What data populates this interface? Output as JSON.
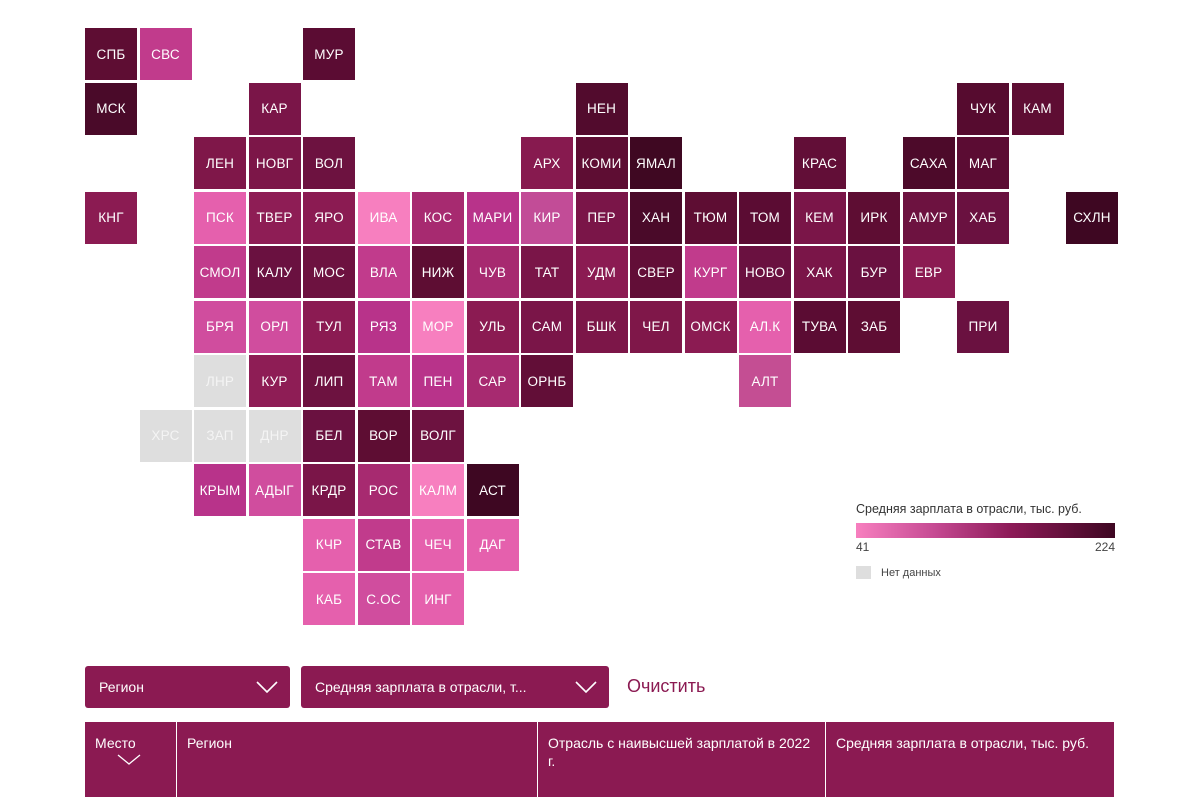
{
  "colors": {
    "accent": "#8b1a52",
    "nodata": "#dedede",
    "scale_min": "#f77fbf",
    "scale_max": "#3e0722"
  },
  "legend": {
    "title": "Средняя зарплата в отрасли, тыс. руб.",
    "min": "41",
    "max": "224",
    "nodata_label": "Нет данных"
  },
  "regions": [
    {
      "label": "СПБ",
      "col": 0,
      "row": 0,
      "color": "#5e0d33"
    },
    {
      "label": "СВС",
      "col": 1,
      "row": 0,
      "color": "#c13b8c"
    },
    {
      "label": "МУР",
      "col": 4,
      "row": 0,
      "color": "#5b0c33"
    },
    {
      "label": "МСК",
      "col": 0,
      "row": 1,
      "color": "#4a0a29"
    },
    {
      "label": "КАР",
      "col": 3,
      "row": 1,
      "color": "#7a1548"
    },
    {
      "label": "НЕН",
      "col": 9,
      "row": 1,
      "color": "#520b2d"
    },
    {
      "label": "ЧУК",
      "col": 16,
      "row": 1,
      "color": "#560b2f"
    },
    {
      "label": "КАМ",
      "col": 17,
      "row": 1,
      "color": "#5e0d33"
    },
    {
      "label": "ЛЕН",
      "col": 2,
      "row": 2,
      "color": "#7f1749"
    },
    {
      "label": "НОВГ",
      "col": 3,
      "row": 2,
      "color": "#7c1648"
    },
    {
      "label": "ВОЛ",
      "col": 4,
      "row": 2,
      "color": "#6d1240"
    },
    {
      "label": "АРХ",
      "col": 8,
      "row": 2,
      "color": "#871a4f"
    },
    {
      "label": "КОМИ",
      "col": 9,
      "row": 2,
      "color": "#5e0d33"
    },
    {
      "label": "ЯМАЛ",
      "col": 10,
      "row": 2,
      "color": "#3f0822"
    },
    {
      "label": "КРАС",
      "col": 13,
      "row": 2,
      "color": "#620e37"
    },
    {
      "label": "САХА",
      "col": 15,
      "row": 2,
      "color": "#4d0a2a"
    },
    {
      "label": "МАГ",
      "col": 16,
      "row": 2,
      "color": "#5b0c33"
    },
    {
      "label": "КНГ",
      "col": 0,
      "row": 3,
      "color": "#8b1b52"
    },
    {
      "label": "ПСК",
      "col": 2,
      "row": 3,
      "color": "#e560ad"
    },
    {
      "label": "ТВЕР",
      "col": 3,
      "row": 3,
      "color": "#8e1d55"
    },
    {
      "label": "ЯРО",
      "col": 4,
      "row": 3,
      "color": "#8b1b52"
    },
    {
      "label": "ИВА",
      "col": 5,
      "row": 3,
      "color": "#f77fbf"
    },
    {
      "label": "КОС",
      "col": 6,
      "row": 3,
      "color": "#a72a70"
    },
    {
      "label": "МАРИ",
      "col": 7,
      "row": 3,
      "color": "#b8338a"
    },
    {
      "label": "КИР",
      "col": 8,
      "row": 3,
      "color": "#c24c97"
    },
    {
      "label": "ПЕР",
      "col": 9,
      "row": 3,
      "color": "#7a1548"
    },
    {
      "label": "ХАН",
      "col": 10,
      "row": 3,
      "color": "#4a0a29"
    },
    {
      "label": "ТЮМ",
      "col": 11,
      "row": 3,
      "color": "#5e0d33"
    },
    {
      "label": "ТОМ",
      "col": 12,
      "row": 3,
      "color": "#5b0c33"
    },
    {
      "label": "КЕМ",
      "col": 13,
      "row": 3,
      "color": "#7a1548"
    },
    {
      "label": "ИРК",
      "col": 14,
      "row": 3,
      "color": "#5e0d33"
    },
    {
      "label": "АМУР",
      "col": 15,
      "row": 3,
      "color": "#6d1240"
    },
    {
      "label": "ХАБ",
      "col": 16,
      "row": 3,
      "color": "#6a1140"
    },
    {
      "label": "СХЛН",
      "col": 18,
      "row": 3,
      "color": "#3e0722"
    },
    {
      "label": "СМОЛ",
      "col": 2,
      "row": 4,
      "color": "#c13b8c"
    },
    {
      "label": "КАЛУ",
      "col": 3,
      "row": 4,
      "color": "#6a1140"
    },
    {
      "label": "МОС",
      "col": 4,
      "row": 4,
      "color": "#6d1240"
    },
    {
      "label": "ВЛА",
      "col": 5,
      "row": 4,
      "color": "#c13b8c"
    },
    {
      "label": "НИЖ",
      "col": 6,
      "row": 4,
      "color": "#5e0d33"
    },
    {
      "label": "ЧУВ",
      "col": 7,
      "row": 4,
      "color": "#a72a70"
    },
    {
      "label": "ТАТ",
      "col": 8,
      "row": 4,
      "color": "#7a1548"
    },
    {
      "label": "УДМ",
      "col": 9,
      "row": 4,
      "color": "#8b1b52"
    },
    {
      "label": "СВЕР",
      "col": 10,
      "row": 4,
      "color": "#620e37"
    },
    {
      "label": "КУРГ",
      "col": 11,
      "row": 4,
      "color": "#c13b8c"
    },
    {
      "label": "НОВО",
      "col": 12,
      "row": 4,
      "color": "#6a1140"
    },
    {
      "label": "ХАК",
      "col": 13,
      "row": 4,
      "color": "#7a1548"
    },
    {
      "label": "БУР",
      "col": 14,
      "row": 4,
      "color": "#6a1140"
    },
    {
      "label": "ЕВР",
      "col": 15,
      "row": 4,
      "color": "#8b1b52"
    },
    {
      "label": "БРЯ",
      "col": 2,
      "row": 5,
      "color": "#d04d9e"
    },
    {
      "label": "ОРЛ",
      "col": 3,
      "row": 5,
      "color": "#d04d9e"
    },
    {
      "label": "ТУЛ",
      "col": 4,
      "row": 5,
      "color": "#8b1b52"
    },
    {
      "label": "РЯЗ",
      "col": 5,
      "row": 5,
      "color": "#b8338a"
    },
    {
      "label": "МОР",
      "col": 6,
      "row": 5,
      "color": "#f77fbf"
    },
    {
      "label": "УЛЬ",
      "col": 7,
      "row": 5,
      "color": "#8b1b52"
    },
    {
      "label": "САМ",
      "col": 8,
      "row": 5,
      "color": "#7a1548"
    },
    {
      "label": "БШК",
      "col": 9,
      "row": 5,
      "color": "#7c1648"
    },
    {
      "label": "ЧЕЛ",
      "col": 10,
      "row": 5,
      "color": "#7f1749"
    },
    {
      "label": "ОМСК",
      "col": 11,
      "row": 5,
      "color": "#8b1b52"
    },
    {
      "label": "АЛ.К",
      "col": 12,
      "row": 5,
      "color": "#e560ad"
    },
    {
      "label": "ТУВА",
      "col": 13,
      "row": 5,
      "color": "#5b0c33"
    },
    {
      "label": "ЗАБ",
      "col": 14,
      "row": 5,
      "color": "#5e0d33"
    },
    {
      "label": "ПРИ",
      "col": 16,
      "row": 5,
      "color": "#6a1140"
    },
    {
      "label": "ЛНР",
      "col": 2,
      "row": 6,
      "color": "#dedede",
      "nodata": true
    },
    {
      "label": "КУР",
      "col": 3,
      "row": 6,
      "color": "#8e1d55"
    },
    {
      "label": "ЛИП",
      "col": 4,
      "row": 6,
      "color": "#6d1240"
    },
    {
      "label": "ТАМ",
      "col": 5,
      "row": 6,
      "color": "#c13b8c"
    },
    {
      "label": "ПЕН",
      "col": 6,
      "row": 6,
      "color": "#b8338a"
    },
    {
      "label": "САР",
      "col": 7,
      "row": 6,
      "color": "#a72a70"
    },
    {
      "label": "ОРНБ",
      "col": 8,
      "row": 6,
      "color": "#620e37"
    },
    {
      "label": "АЛТ",
      "col": 12,
      "row": 6,
      "color": "#c44e93"
    },
    {
      "label": "ХРС",
      "col": 1,
      "row": 7,
      "color": "#dedede",
      "nodata": true
    },
    {
      "label": "ЗАП",
      "col": 2,
      "row": 7,
      "color": "#dedede",
      "nodata": true
    },
    {
      "label": "ДНР",
      "col": 3,
      "row": 7,
      "color": "#dedede",
      "nodata": true
    },
    {
      "label": "БЕЛ",
      "col": 4,
      "row": 7,
      "color": "#6a1140"
    },
    {
      "label": "ВОР",
      "col": 5,
      "row": 7,
      "color": "#5e0d33"
    },
    {
      "label": "ВОЛГ",
      "col": 6,
      "row": 7,
      "color": "#6d1240"
    },
    {
      "label": "КРЫМ",
      "col": 2,
      "row": 8,
      "color": "#b8338a"
    },
    {
      "label": "АДЫГ",
      "col": 3,
      "row": 8,
      "color": "#d04d9e"
    },
    {
      "label": "КРДР",
      "col": 4,
      "row": 8,
      "color": "#7a1548"
    },
    {
      "label": "РОС",
      "col": 5,
      "row": 8,
      "color": "#a72a70"
    },
    {
      "label": "КАЛМ",
      "col": 6,
      "row": 8,
      "color": "#f77fbf"
    },
    {
      "label": "АСТ",
      "col": 7,
      "row": 8,
      "color": "#3e0722"
    },
    {
      "label": "КЧР",
      "col": 4,
      "row": 9,
      "color": "#e560ad"
    },
    {
      "label": "СТАВ",
      "col": 5,
      "row": 9,
      "color": "#c13b8c"
    },
    {
      "label": "ЧЕЧ",
      "col": 6,
      "row": 9,
      "color": "#e560ad"
    },
    {
      "label": "ДАГ",
      "col": 7,
      "row": 9,
      "color": "#e560ad"
    },
    {
      "label": "КАБ",
      "col": 4,
      "row": 10,
      "color": "#e560ad"
    },
    {
      "label": "С.ОС",
      "col": 5,
      "row": 10,
      "color": "#d04d9e"
    },
    {
      "label": "ИНГ",
      "col": 6,
      "row": 10,
      "color": "#e560ad"
    }
  ],
  "filters": {
    "region_label": "Регион",
    "metric_label": "Средняя зарплата в отрасли, т...",
    "clear_label": "Очистить"
  },
  "table": {
    "headers": {
      "place": "Место",
      "region": "Регион",
      "industry": "Отрасль с наивысшей зарплатой в 2022 г.",
      "salary": "Средняя зарплата в отрасли, тыс. руб."
    }
  }
}
